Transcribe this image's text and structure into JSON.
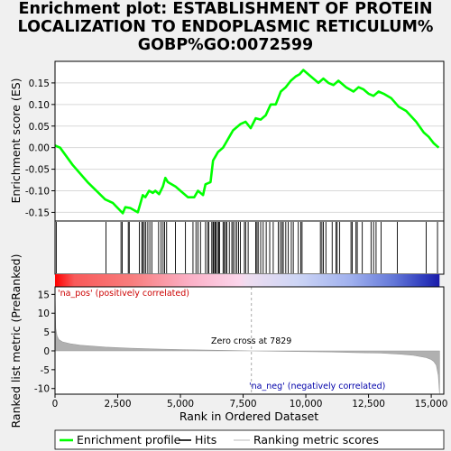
{
  "title_lines": [
    "Enrichment plot: ESTABLISHMENT OF PROTEIN",
    "LOCALIZATION TO ENDOPLASMIC RETICULUM%",
    "GOBP%GO:0072599"
  ],
  "colors": {
    "es_line": "#00ff00",
    "pos_label": "#cc0000",
    "neg_label": "#0000aa",
    "metric_fill": "#b0b0b0",
    "zero_line": "#aaaaaa"
  },
  "chart_data": [
    {
      "type": "line",
      "name": "enrichment-profile",
      "ylabel": "Enrichment score (ES)",
      "ylim": [
        -0.17,
        0.2
      ],
      "xlim": [
        0,
        15500
      ],
      "yticks": [
        -0.15,
        -0.1,
        -0.05,
        0.0,
        0.05,
        0.1,
        0.15
      ],
      "ytick_labels": [
        "-0.15",
        "-0.10",
        "-0.05",
        "0.00",
        "0.05",
        "0.10",
        "0.15"
      ],
      "x": [
        0,
        200,
        700,
        1300,
        2000,
        2300,
        2700,
        2800,
        3000,
        3300,
        3500,
        3600,
        3750,
        3900,
        4000,
        4150,
        4300,
        4400,
        4500,
        4800,
        5000,
        5300,
        5550,
        5700,
        5900,
        6000,
        6200,
        6300,
        6400,
        6500,
        6700,
        6800,
        7000,
        7100,
        7300,
        7400,
        7600,
        7800,
        8000,
        8200,
        8400,
        8600,
        8800,
        9000,
        9200,
        9400,
        9600,
        9750,
        9900,
        10100,
        10300,
        10500,
        10700,
        10900,
        11100,
        11300,
        11600,
        11900,
        12100,
        12300,
        12500,
        12700,
        12900,
        13100,
        13400,
        13700,
        14000,
        14400,
        14700,
        14900,
        15100,
        15300
      ],
      "y": [
        0.005,
        0.0,
        -0.04,
        -0.08,
        -0.12,
        -0.128,
        -0.152,
        -0.138,
        -0.14,
        -0.15,
        -0.11,
        -0.115,
        -0.1,
        -0.105,
        -0.1,
        -0.108,
        -0.09,
        -0.07,
        -0.08,
        -0.09,
        -0.1,
        -0.115,
        -0.115,
        -0.1,
        -0.11,
        -0.085,
        -0.08,
        -0.03,
        -0.02,
        -0.01,
        0.0,
        0.01,
        0.03,
        0.04,
        0.05,
        0.055,
        0.06,
        0.045,
        0.068,
        0.065,
        0.075,
        0.1,
        0.1,
        0.13,
        0.14,
        0.155,
        0.165,
        0.17,
        0.18,
        0.17,
        0.16,
        0.15,
        0.16,
        0.15,
        0.145,
        0.155,
        0.14,
        0.13,
        0.14,
        0.135,
        0.125,
        0.12,
        0.13,
        0.125,
        0.115,
        0.095,
        0.085,
        0.06,
        0.035,
        0.025,
        0.01,
        0.0
      ]
    },
    {
      "type": "bar",
      "name": "hits",
      "x": [
        50,
        2030,
        2630,
        2680,
        2920,
        2960,
        3360,
        3460,
        3500,
        3560,
        3620,
        3700,
        3780,
        3860,
        4130,
        4230,
        4310,
        4370,
        4450,
        4800,
        5200,
        5500,
        5620,
        5700,
        5800,
        6000,
        6080,
        6130,
        6250,
        6300,
        6330,
        6380,
        6420,
        6480,
        6530,
        6560,
        6700,
        6750,
        6800,
        6850,
        6950,
        7050,
        7100,
        7180,
        7250,
        7320,
        7390,
        7550,
        7600,
        7700,
        8000,
        8050,
        8100,
        8200,
        8300,
        8420,
        8560,
        8700,
        8900,
        8980,
        9050,
        9100,
        9200,
        9300,
        9420,
        9500,
        9700,
        9800,
        9850,
        10580,
        10640,
        10700,
        10800,
        11050,
        11200,
        11250,
        11350,
        11800,
        11850,
        12000,
        12050,
        12250,
        12600,
        12700,
        12800,
        13000,
        13650,
        14800,
        15250
      ]
    },
    {
      "type": "area",
      "name": "ranked-list-metric",
      "ylabel": "Ranked list metric (PreRanked)",
      "xlabel": "Rank in Ordered Dataset",
      "ylim": [
        -11.5,
        17
      ],
      "xlim": [
        0,
        15500
      ],
      "yticks": [
        -10,
        -5,
        0,
        5,
        10,
        15
      ],
      "ytick_labels": [
        "-10",
        "-5",
        "0",
        "5",
        "10",
        "15"
      ],
      "xticks": [
        0,
        2500,
        5000,
        7500,
        10000,
        12500,
        15000
      ],
      "xtick_labels": [
        "0",
        "2,500",
        "5,000",
        "7,500",
        "10,000",
        "12,500",
        "15,000"
      ],
      "x": [
        0,
        30,
        80,
        150,
        300,
        600,
        1000,
        2000,
        3000,
        4000,
        5000,
        6000,
        7000,
        7829,
        9000,
        10000,
        11000,
        12000,
        13000,
        13800,
        14300,
        14800,
        15000,
        15100,
        15200,
        15280,
        15330
      ],
      "y": [
        16,
        6,
        4,
        3,
        2.4,
        1.9,
        1.5,
        1.0,
        0.7,
        0.5,
        0.35,
        0.2,
        0.08,
        0.0,
        -0.1,
        -0.2,
        -0.3,
        -0.45,
        -0.6,
        -0.9,
        -1.2,
        -1.8,
        -2.3,
        -2.8,
        -3.8,
        -6.5,
        -11.3
      ],
      "zero_cross_label": "Zero cross at 7829",
      "zero_cross": 7829,
      "pos_label": "'na_pos' (positively correlated)",
      "neg_label": "'na_neg' (negatively correlated)"
    }
  ],
  "legend": {
    "enrichment": "Enrichment profile",
    "hits": "Hits",
    "ranking": "Ranking metric scores"
  }
}
